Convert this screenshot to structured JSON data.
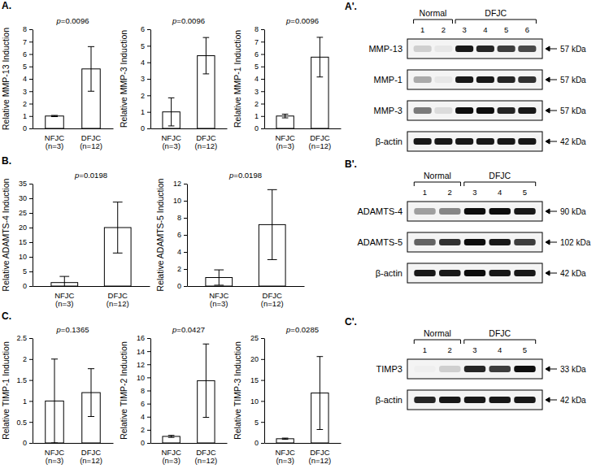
{
  "chart_data": [
    {
      "type": "bar",
      "annotation": "p=0.0096",
      "y_label": "Relative MMP-13 Induction",
      "categories": [
        "NFJC (n=3)",
        "DFJC (n=12)"
      ],
      "values": [
        1,
        4.8
      ],
      "errors": [
        0.05,
        1.8
      ],
      "color": "#ffffff",
      "ylim": [
        0,
        8
      ],
      "yticks": [
        0,
        1,
        2,
        3,
        4,
        5,
        6,
        7,
        8
      ]
    },
    {
      "type": "bar",
      "annotation": "p=0.0096",
      "y_label": "Relative MMP-3 Induction",
      "categories": [
        "NFJC (n=3)",
        "DFJC (n=12)"
      ],
      "values": [
        1,
        4.4
      ],
      "errors": [
        0.85,
        1.1
      ],
      "color": "#ffffff",
      "ylim": [
        0,
        6
      ],
      "yticks": [
        0,
        1,
        2,
        3,
        4,
        5,
        6
      ]
    },
    {
      "type": "bar",
      "annotation": "p=0.0096",
      "y_label": "Relative MMP-1 Induction",
      "categories": [
        "NFJC (n=3)",
        "DFJC (n=12)"
      ],
      "values": [
        1,
        5.75
      ],
      "errors": [
        0.15,
        1.6
      ],
      "color": "#ffffff",
      "ylim": [
        0,
        8
      ],
      "yticks": [
        0,
        1,
        2,
        3,
        4,
        5,
        6,
        7,
        8
      ]
    },
    {
      "type": "bar",
      "annotation": "p=0.0198",
      "y_label": "Relative ADAMTS-4 Induction",
      "categories": [
        "NFJC (n=3)",
        "DFJC (n=12)"
      ],
      "values": [
        1.2,
        20
      ],
      "errors": [
        2.1,
        8.7
      ],
      "color": "#ffffff",
      "ylim": [
        0,
        35
      ],
      "yticks": [
        0,
        5,
        10,
        15,
        20,
        25,
        30,
        35
      ]
    },
    {
      "type": "bar",
      "annotation": "p=0.0198",
      "y_label": "Relative ADAMTS-5 Induction",
      "categories": [
        "NFJC (n=3)",
        "DFJC (n=12)"
      ],
      "values": [
        1,
        7.2
      ],
      "errors": [
        0.9,
        4.1
      ],
      "color": "#ffffff",
      "ylim": [
        0,
        12
      ],
      "yticks": [
        0,
        2,
        4,
        6,
        8,
        10,
        12
      ]
    },
    {
      "type": "bar",
      "annotation": "p=0.1365",
      "y_label": "Relative TIMP-1 Induction",
      "categories": [
        "NFJC (n=3)",
        "DFJC (n=12)"
      ],
      "values": [
        1,
        1.2
      ],
      "errors": [
        1.0,
        0.57
      ],
      "color": "#ffffff",
      "ylim": [
        0,
        2.5
      ],
      "yticks": [
        0,
        0.5,
        1,
        1.5,
        2,
        2.5
      ]
    },
    {
      "type": "bar",
      "annotation": "p=0.0427",
      "y_label": "Relative TIMP-2 Induction",
      "categories": [
        "NFJC (n=3)",
        "DFJC (n=12)"
      ],
      "values": [
        1,
        9.5
      ],
      "errors": [
        0.15,
        5.6
      ],
      "color": "#ffffff",
      "ylim": [
        0,
        16
      ],
      "yticks": [
        0,
        2,
        4,
        6,
        8,
        10,
        12,
        14,
        16
      ]
    },
    {
      "type": "bar",
      "annotation": "p=0.0285",
      "y_label": "Relative TIMP-3 Induction",
      "categories": [
        "NFJC (n=3)",
        "DFJC (n=12)"
      ],
      "values": [
        1,
        11.9
      ],
      "errors": [
        0.15,
        8.7
      ],
      "color": "#ffffff",
      "ylim": [
        0,
        25
      ],
      "yticks": [
        0,
        5,
        10,
        15,
        20,
        25
      ]
    }
  ],
  "panel_labels": [
    "A.",
    "A'.",
    "B.",
    "B'.",
    "C.",
    "C'."
  ],
  "blots": [
    {
      "groups": [
        {
          "label": "Normal",
          "lanes": [
            1,
            2
          ]
        },
        {
          "label": "DFJC",
          "lanes": [
            3,
            4,
            5,
            6
          ]
        }
      ],
      "rows": [
        {
          "label": "MMP-13",
          "size": "57 kDa",
          "intensity": [
            0.15,
            0.05,
            0.9,
            0.85,
            0.75,
            0.7
          ]
        },
        {
          "label": "MMP-1",
          "size": "57 kDa",
          "intensity": [
            0.3,
            0.05,
            0.9,
            0.9,
            0.85,
            0.8
          ]
        },
        {
          "label": "MMP-3",
          "size": "57 kDa",
          "intensity": [
            0.5,
            0.1,
            0.95,
            0.95,
            0.85,
            0.9
          ]
        },
        {
          "label": "β-actin",
          "size": "42 kDa",
          "intensity": [
            0.9,
            0.9,
            0.9,
            0.9,
            0.9,
            0.9
          ]
        }
      ]
    },
    {
      "groups": [
        {
          "label": "Normal",
          "lanes": [
            1,
            2
          ]
        },
        {
          "label": "DFJC",
          "lanes": [
            3,
            4,
            5
          ]
        }
      ],
      "rows": [
        {
          "label": "ADAMTS-4",
          "size": "90 kDa",
          "intensity": [
            0.35,
            0.45,
            0.95,
            0.95,
            0.9
          ]
        },
        {
          "label": "ADAMTS-5",
          "size": "102 kDa",
          "intensity": [
            0.6,
            0.8,
            0.95,
            0.9,
            0.75
          ]
        },
        {
          "label": "β-actin",
          "size": "42 kDa",
          "intensity": [
            0.9,
            0.9,
            0.95,
            0.9,
            0.9
          ]
        }
      ]
    },
    {
      "groups": [
        {
          "label": "Normal",
          "lanes": [
            1,
            2
          ]
        },
        {
          "label": "DFJC",
          "lanes": [
            3,
            4,
            5
          ]
        }
      ],
      "rows": [
        {
          "label": "TIMP3",
          "size": "33 kDa",
          "intensity": [
            0.02,
            0.15,
            0.85,
            0.75,
            0.95
          ]
        },
        {
          "label": "β-actin",
          "size": "42 kDa",
          "intensity": [
            0.85,
            0.9,
            0.9,
            0.9,
            0.9
          ]
        }
      ]
    }
  ]
}
